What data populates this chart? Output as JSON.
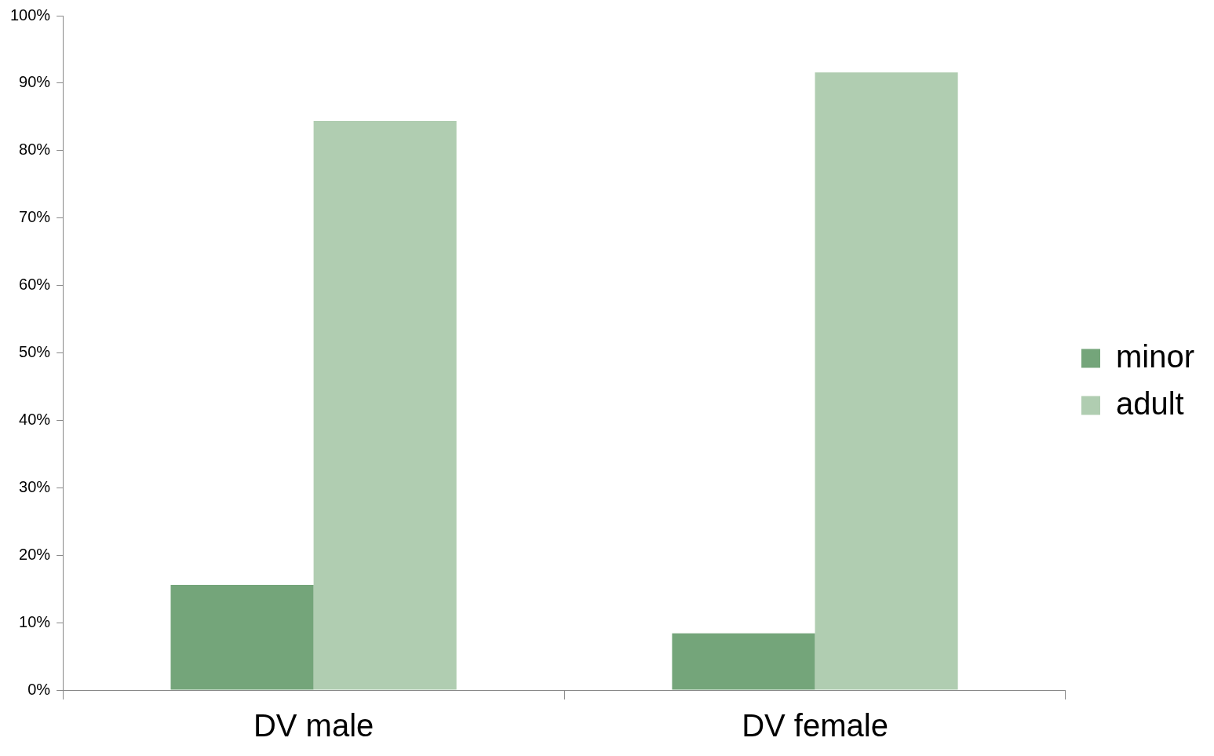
{
  "chart_data": {
    "type": "bar",
    "categories": [
      "DV male",
      "DV female"
    ],
    "series": [
      {
        "name": "minor",
        "color": "#74a57a",
        "values": [
          15.6,
          8.4
        ]
      },
      {
        "name": "adult",
        "color": "#b0cdb1",
        "values": [
          84.4,
          91.6
        ]
      }
    ],
    "ylim": [
      0,
      100
    ],
    "yticks": [
      {
        "value": 0,
        "label": "0%"
      },
      {
        "value": 10,
        "label": "10%"
      },
      {
        "value": 20,
        "label": "20%"
      },
      {
        "value": 30,
        "label": "30%"
      },
      {
        "value": 40,
        "label": "40%"
      },
      {
        "value": 50,
        "label": "50%"
      },
      {
        "value": 60,
        "label": "60%"
      },
      {
        "value": 70,
        "label": "70%"
      },
      {
        "value": 80,
        "label": "80%"
      },
      {
        "value": 90,
        "label": "90%"
      },
      {
        "value": 100,
        "label": "100%"
      }
    ],
    "grid": false,
    "legend": "right"
  }
}
